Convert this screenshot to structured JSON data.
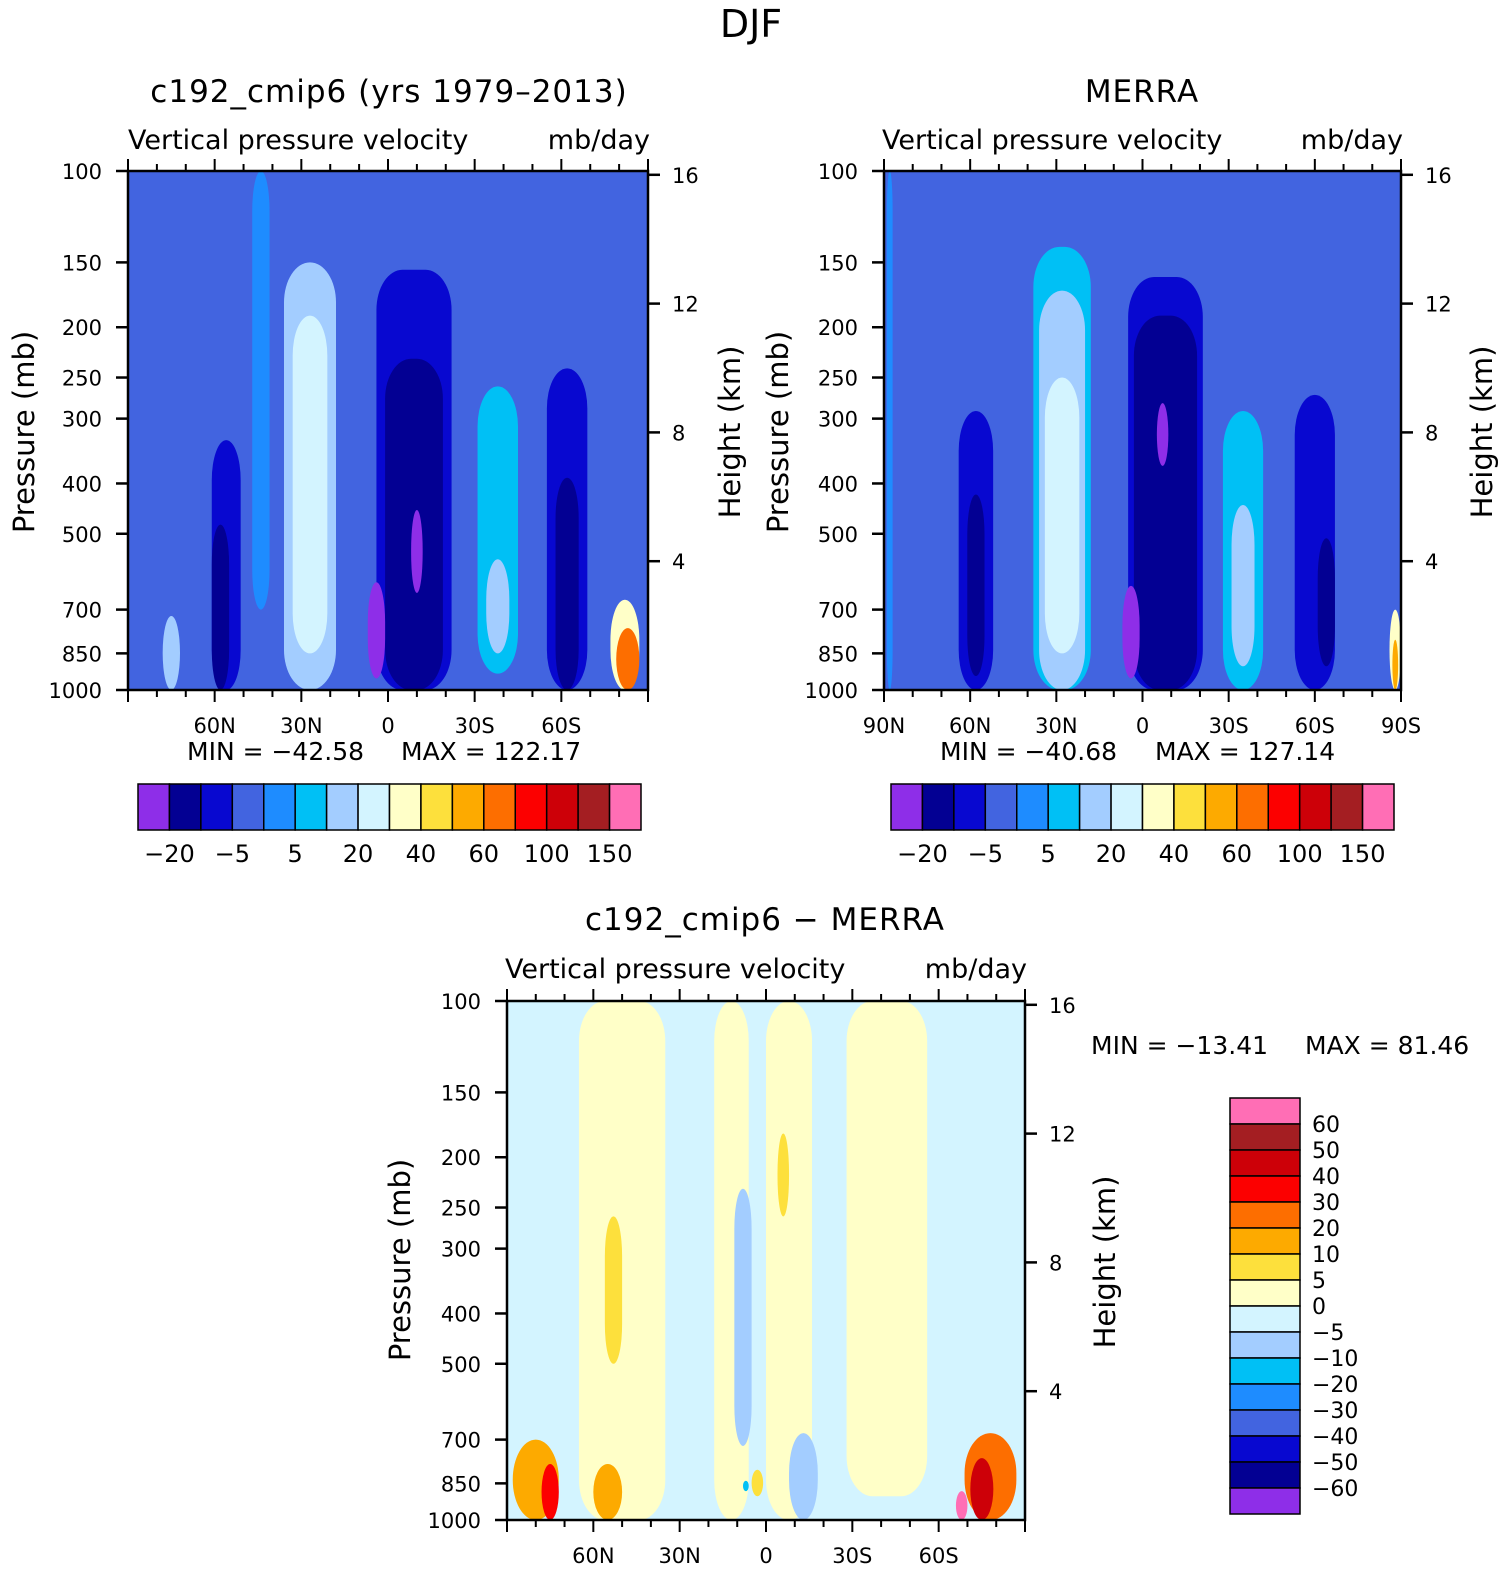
{
  "figure": {
    "title": "DJF"
  },
  "colors": {
    "levels_top": [
      "#8e2ee8",
      "#030093",
      "#0808d0",
      "#4264e0",
      "#1e8cff",
      "#00c0f5",
      "#a3cdff",
      "#d3f4ff",
      "#ffffc8",
      "#fde03c",
      "#fdaa00",
      "#fd6e00",
      "#fc0000",
      "#cd0008",
      "#a41e22",
      "#ff6eb5"
    ],
    "levels_diff": [
      "#8e2ee8",
      "#030093",
      "#0808d0",
      "#4264e0",
      "#1e8cff",
      "#00c0f5",
      "#a3cdff",
      "#d3f4ff",
      "#ffffc8",
      "#fde03c",
      "#fdaa00",
      "#fd6e00",
      "#fc0000",
      "#cd0008",
      "#a41e22",
      "#ff6eb5"
    ]
  },
  "chart_data": [
    {
      "id": "model",
      "type": "heatmap",
      "title": "c192_cmip6 (yrs 1979–2013)",
      "subtitle_left": "Vertical pressure velocity",
      "subtitle_right": "mb/day",
      "ylabel": "Pressure (mb)",
      "ylabel_right": "Height (km)",
      "x_ticks": [
        {
          "v": -60,
          "label": "60N"
        },
        {
          "v": -30,
          "label": "30N"
        },
        {
          "v": 0,
          "label": "0"
        },
        {
          "v": 30,
          "label": "30S"
        },
        {
          "v": 60,
          "label": "60S"
        }
      ],
      "xlim": [
        -90,
        90
      ],
      "y_ticks": [
        100,
        150,
        200,
        250,
        300,
        400,
        500,
        700,
        850,
        1000
      ],
      "ylim": [
        100,
        1000
      ],
      "height_ticks": [
        16,
        12,
        8,
        4
      ],
      "min_label": "MIN = −42.58",
      "max_label": "MAX = 122.17",
      "colorbar_labels": [
        "−20",
        "−5",
        "5",
        "20",
        "40",
        "60",
        "100",
        "150"
      ],
      "levels": [
        -30,
        -20,
        -10,
        -5,
        0,
        5,
        10,
        20,
        30,
        40,
        50,
        60,
        80,
        100,
        150
      ],
      "base": 3,
      "blobs": [
        {
          "lat": -27,
          "w": 9,
          "p1": 150,
          "p2": 1000,
          "lvl": 6
        },
        {
          "lat": -27,
          "w": 6,
          "p1": 190,
          "p2": 850,
          "lvl": 7
        },
        {
          "lat": -56,
          "w": 5,
          "p1": 330,
          "p2": 1000,
          "lvl": 2
        },
        {
          "lat": -58,
          "w": 3,
          "p1": 480,
          "p2": 1000,
          "lvl": 1
        },
        {
          "lat": 9,
          "w": 13,
          "p1": 155,
          "p2": 1000,
          "lvl": 2
        },
        {
          "lat": 9,
          "w": 10,
          "p1": 230,
          "p2": 1000,
          "lvl": 1
        },
        {
          "lat": 10,
          "w": 2,
          "p1": 450,
          "p2": 650,
          "lvl": 0
        },
        {
          "lat": -4,
          "w": 3,
          "p1": 620,
          "p2": 950,
          "lvl": 0
        },
        {
          "lat": 38,
          "w": 7,
          "p1": 260,
          "p2": 930,
          "lvl": 5
        },
        {
          "lat": 38,
          "w": 4,
          "p1": 560,
          "p2": 850,
          "lvl": 6
        },
        {
          "lat": 62,
          "w": 7,
          "p1": 240,
          "p2": 1000,
          "lvl": 2
        },
        {
          "lat": 62,
          "w": 4,
          "p1": 390,
          "p2": 1000,
          "lvl": 1
        },
        {
          "lat": -44,
          "w": 3,
          "p1": 100,
          "p2": 700,
          "lvl": 4
        },
        {
          "lat": 82,
          "w": 5,
          "p1": 670,
          "p2": 1000,
          "lvl": 8
        },
        {
          "lat": 83,
          "w": 4,
          "p1": 760,
          "p2": 1000,
          "lvl": 11
        },
        {
          "lat": -75,
          "w": 3,
          "p1": 720,
          "p2": 1000,
          "lvl": 6
        }
      ]
    },
    {
      "id": "obs",
      "type": "heatmap",
      "title": "MERRA",
      "subtitle_left": "Vertical pressure velocity",
      "subtitle_right": "mb/day",
      "ylabel": "Pressure (mb)",
      "ylabel_right": "Height (km)",
      "x_ticks": [
        {
          "v": -90,
          "label": "90N"
        },
        {
          "v": -60,
          "label": "60N"
        },
        {
          "v": -30,
          "label": "30N"
        },
        {
          "v": 0,
          "label": "0"
        },
        {
          "v": 30,
          "label": "30S"
        },
        {
          "v": 60,
          "label": "60S"
        },
        {
          "v": 90,
          "label": "90S"
        }
      ],
      "xlim": [
        -90,
        90
      ],
      "y_ticks": [
        100,
        150,
        200,
        250,
        300,
        400,
        500,
        700,
        850,
        1000
      ],
      "ylim": [
        100,
        1000
      ],
      "height_ticks": [
        16,
        12,
        8,
        4
      ],
      "min_label": "MIN = −40.68",
      "max_label": "MAX = 127.14",
      "colorbar_labels": [
        "−20",
        "−5",
        "5",
        "20",
        "40",
        "60",
        "100",
        "150"
      ],
      "levels": [
        -30,
        -20,
        -10,
        -5,
        0,
        5,
        10,
        20,
        30,
        40,
        50,
        60,
        80,
        100,
        150
      ],
      "base": 3,
      "blobs": [
        {
          "lat": -28,
          "w": 10,
          "p1": 140,
          "p2": 1000,
          "lvl": 5
        },
        {
          "lat": -28,
          "w": 8,
          "p1": 170,
          "p2": 1000,
          "lvl": 6
        },
        {
          "lat": -28,
          "w": 6,
          "p1": 250,
          "p2": 850,
          "lvl": 7
        },
        {
          "lat": -58,
          "w": 6,
          "p1": 290,
          "p2": 1000,
          "lvl": 2
        },
        {
          "lat": -58,
          "w": 3,
          "p1": 420,
          "p2": 940,
          "lvl": 1
        },
        {
          "lat": 8,
          "w": 13,
          "p1": 160,
          "p2": 1000,
          "lvl": 2
        },
        {
          "lat": 8,
          "w": 11,
          "p1": 190,
          "p2": 1000,
          "lvl": 1
        },
        {
          "lat": 7,
          "w": 2,
          "p1": 280,
          "p2": 370,
          "lvl": 0
        },
        {
          "lat": -4,
          "w": 3,
          "p1": 630,
          "p2": 950,
          "lvl": 0
        },
        {
          "lat": 35,
          "w": 7,
          "p1": 290,
          "p2": 1000,
          "lvl": 5
        },
        {
          "lat": 35,
          "w": 4,
          "p1": 440,
          "p2": 900,
          "lvl": 6
        },
        {
          "lat": 60,
          "w": 7,
          "p1": 270,
          "p2": 1000,
          "lvl": 2
        },
        {
          "lat": 64,
          "w": 3,
          "p1": 510,
          "p2": 900,
          "lvl": 1
        },
        {
          "lat": -88,
          "w": 1,
          "p1": 100,
          "p2": 1000,
          "lvl": 4
        },
        {
          "lat": 88,
          "w": 2,
          "p1": 700,
          "p2": 1000,
          "lvl": 8
        },
        {
          "lat": 88,
          "w": 1,
          "p1": 800,
          "p2": 1000,
          "lvl": 10
        }
      ]
    },
    {
      "id": "diff",
      "type": "heatmap",
      "title": "c192_cmip6 − MERRA",
      "subtitle_left": "Vertical pressure velocity",
      "subtitle_right": "mb/day",
      "ylabel": "Pressure (mb)",
      "ylabel_right": "Height (km)",
      "x_ticks": [
        {
          "v": -60,
          "label": "60N"
        },
        {
          "v": -30,
          "label": "30N"
        },
        {
          "v": 0,
          "label": "0"
        },
        {
          "v": 30,
          "label": "30S"
        },
        {
          "v": 60,
          "label": "60S"
        }
      ],
      "xlim": [
        -90,
        90
      ],
      "y_ticks": [
        100,
        150,
        200,
        250,
        300,
        400,
        500,
        700,
        850,
        1000
      ],
      "ylim": [
        100,
        1000
      ],
      "height_ticks": [
        16,
        12,
        8,
        4
      ],
      "min_label": "MIN = −13.41",
      "max_label": "MAX =   81.46",
      "colorbar_labels": [
        "60",
        "50",
        "40",
        "30",
        "20",
        "10",
        "5",
        "0",
        "−5",
        "−10",
        "−20",
        "−30",
        "−40",
        "−50",
        "−60"
      ],
      "levels": [
        -60,
        -50,
        -40,
        -30,
        -20,
        -10,
        -5,
        0,
        5,
        10,
        20,
        30,
        40,
        50,
        60
      ],
      "base": 7,
      "blobs": [
        {
          "lat": -50,
          "w": 15,
          "p1": 100,
          "p2": 1000,
          "lvl": 8
        },
        {
          "lat": -12,
          "w": 6,
          "p1": 100,
          "p2": 1000,
          "lvl": 8
        },
        {
          "lat": 8,
          "w": 8,
          "p1": 100,
          "p2": 1000,
          "lvl": 8
        },
        {
          "lat": 42,
          "w": 14,
          "p1": 100,
          "p2": 900,
          "lvl": 8
        },
        {
          "lat": -53,
          "w": 3,
          "p1": 260,
          "p2": 500,
          "lvl": 9
        },
        {
          "lat": 6,
          "w": 2,
          "p1": 180,
          "p2": 260,
          "lvl": 9
        },
        {
          "lat": -3,
          "w": 2,
          "p1": 800,
          "p2": 900,
          "lvl": 9
        },
        {
          "lat": -8,
          "w": 3,
          "p1": 230,
          "p2": 720,
          "lvl": 6
        },
        {
          "lat": 13,
          "w": 5,
          "p1": 680,
          "p2": 1000,
          "lvl": 6
        },
        {
          "lat": -7,
          "w": 1,
          "p1": 840,
          "p2": 880,
          "lvl": 5
        },
        {
          "lat": -80,
          "w": 8,
          "p1": 700,
          "p2": 1000,
          "lvl": 10
        },
        {
          "lat": -75,
          "w": 3,
          "p1": 780,
          "p2": 1000,
          "lvl": 12
        },
        {
          "lat": -55,
          "w": 5,
          "p1": 780,
          "p2": 1000,
          "lvl": 10
        },
        {
          "lat": 78,
          "w": 9,
          "p1": 680,
          "p2": 1000,
          "lvl": 11
        },
        {
          "lat": 75,
          "w": 4,
          "p1": 760,
          "p2": 1000,
          "lvl": 13
        },
        {
          "lat": 68,
          "w": 2,
          "p1": 880,
          "p2": 1000,
          "lvl": 15
        }
      ]
    }
  ]
}
